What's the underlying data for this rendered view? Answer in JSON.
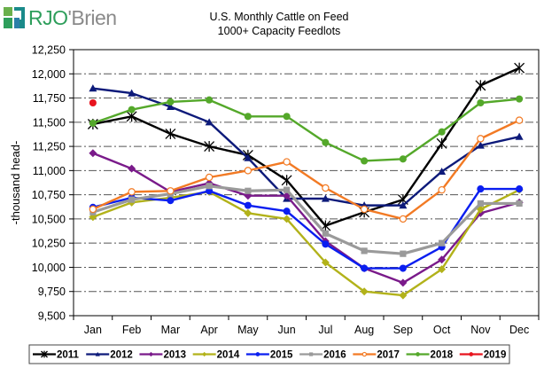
{
  "brand": {
    "logo_text_primary": "RJO",
    "logo_text_secondary": "'Brien",
    "colors": {
      "green": "#2e9e5b",
      "teal": "#1a8a8a",
      "gray": "#8a8a8a"
    }
  },
  "chart_data": {
    "type": "line",
    "title": "U.S. Monthly Cattle on Feed",
    "subtitle": "1000+ Capacity Feedlots",
    "xlabel": "",
    "ylabel": "-thousand head-",
    "ylim": [
      9500,
      12250
    ],
    "yticks": [
      9500,
      9750,
      10000,
      10250,
      10500,
      10750,
      11000,
      11250,
      11500,
      11750,
      12000,
      12250
    ],
    "ytick_labels": [
      "9,500",
      "9,750",
      "10,000",
      "10,250",
      "10,500",
      "10,750",
      "11,000",
      "11,250",
      "11,500",
      "11,750",
      "12,000",
      "12,250"
    ],
    "grid": true,
    "legend_position": "bottom",
    "categories": [
      "Jan",
      "Feb",
      "Mar",
      "Apr",
      "May",
      "Jun",
      "Jul",
      "Aug",
      "Sep",
      "Oct",
      "Nov",
      "Dec"
    ],
    "series": [
      {
        "name": "2011",
        "color": "#000000",
        "marker": "star",
        "values": [
          11480,
          11560,
          11380,
          11250,
          11160,
          10900,
          10430,
          10570,
          10700,
          11280,
          11880,
          12060
        ]
      },
      {
        "name": "2012",
        "color": "#0d1a7a",
        "marker": "triangle",
        "values": [
          11850,
          11800,
          11660,
          11500,
          11130,
          10710,
          10710,
          10640,
          10640,
          10990,
          11260,
          11350
        ]
      },
      {
        "name": "2013",
        "color": "#7a1a8a",
        "marker": "diamond",
        "values": [
          11180,
          11020,
          10780,
          10870,
          10740,
          10740,
          10270,
          9990,
          9840,
          10080,
          10560,
          10670
        ]
      },
      {
        "name": "2014",
        "color": "#b2b21a",
        "marker": "diamond",
        "values": [
          10520,
          10670,
          10720,
          10780,
          10560,
          10500,
          10050,
          9750,
          9710,
          9980,
          10600,
          10800
        ]
      },
      {
        "name": "2015",
        "color": "#0a1ef0",
        "marker": "circle",
        "values": [
          10620,
          10720,
          10690,
          10790,
          10640,
          10580,
          10240,
          9990,
          9990,
          10210,
          10810,
          10810
        ]
      },
      {
        "name": "2016",
        "color": "#9a9a9a",
        "marker": "square",
        "values": [
          10570,
          10700,
          10760,
          10840,
          10790,
          10800,
          10350,
          10170,
          10140,
          10250,
          10660,
          10660
        ]
      },
      {
        "name": "2017",
        "color": "#f27a24",
        "marker": "open-circle",
        "values": [
          10600,
          10780,
          10790,
          10930,
          11000,
          11090,
          10820,
          10600,
          10500,
          10800,
          11330,
          11520
        ]
      },
      {
        "name": "2018",
        "color": "#54a82a",
        "marker": "circle",
        "values": [
          11490,
          11630,
          11710,
          11730,
          11560,
          11560,
          11290,
          11100,
          11120,
          11400,
          11700,
          11740
        ]
      },
      {
        "name": "2019",
        "color": "#e8141e",
        "marker": "circle",
        "values": [
          11700,
          null,
          null,
          null,
          null,
          null,
          null,
          null,
          null,
          null,
          null,
          null
        ]
      }
    ]
  }
}
